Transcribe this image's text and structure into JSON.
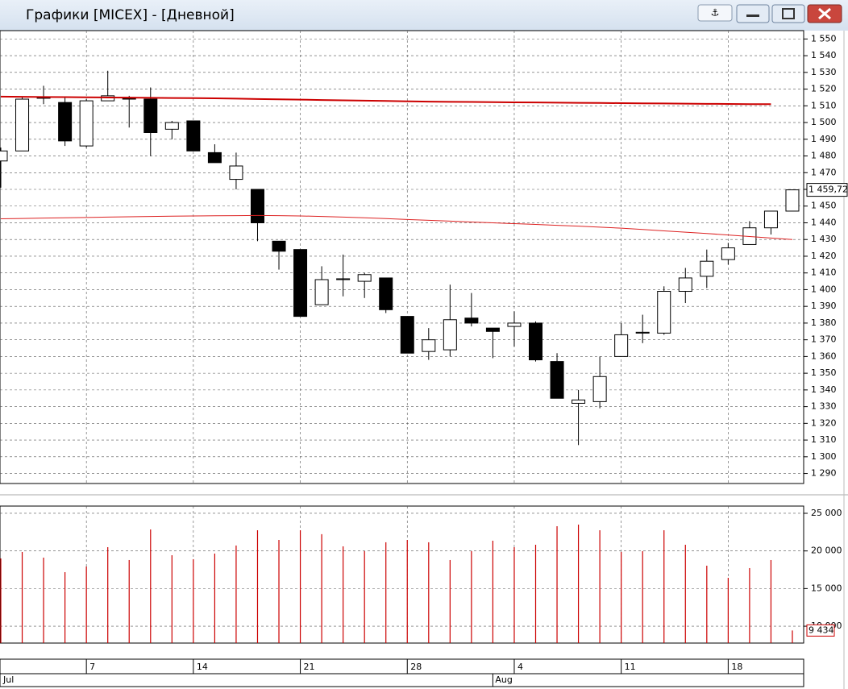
{
  "window": {
    "title": "Графики [MICEX] - [Дневной]"
  },
  "chart_data": [
    {
      "type": "candlestick",
      "categories": [
        null,
        null,
        null,
        null,
        "7",
        null,
        null,
        null,
        null,
        "14",
        null,
        null,
        null,
        null,
        "21",
        null,
        null,
        null,
        null,
        "28",
        null,
        null,
        null,
        null,
        "4",
        null,
        null,
        null,
        null,
        "11",
        null,
        null,
        null,
        null,
        "18",
        null,
        null,
        null
      ],
      "month_categories": [
        "Jul",
        null,
        null,
        null,
        null,
        null,
        null,
        null,
        null,
        null,
        null,
        null,
        null,
        null,
        null,
        null,
        null,
        null,
        null,
        null,
        null,
        null,
        null,
        "Aug",
        null,
        null,
        null,
        null,
        null,
        null,
        null,
        null,
        null,
        null,
        null,
        null,
        null,
        null
      ],
      "open": [
        1477,
        1483,
        1515,
        1512,
        1486,
        1513,
        1515,
        1514,
        1496,
        1501,
        1482,
        1466,
        1460,
        1429,
        1424,
        1391,
        1406,
        1405,
        1407,
        1384,
        1363,
        1364,
        1383,
        1377,
        1378,
        1380,
        1357,
        1332,
        1333,
        1360,
        1374,
        1374,
        1399,
        1408,
        1418,
        1427,
        1437,
        1447
      ],
      "high": [
        1485,
        1515,
        1522,
        1515,
        1514,
        1531,
        1516,
        1521,
        1501,
        1501,
        1487,
        1482,
        1460,
        1429,
        1424,
        1414,
        1421,
        1410,
        1407,
        1384,
        1377,
        1403,
        1398,
        1377,
        1387,
        1381,
        1362,
        1340,
        1360,
        1380,
        1385,
        1402,
        1413,
        1424,
        1428,
        1441,
        1447,
        1460
      ],
      "low": [
        1461,
        1483,
        1511,
        1486,
        1485,
        1513,
        1497,
        1480,
        1490,
        1483,
        1476,
        1460,
        1429,
        1412,
        1384,
        1391,
        1396,
        1395,
        1386,
        1362,
        1358,
        1360,
        1378,
        1359,
        1366,
        1357,
        1335,
        1307,
        1329,
        1360,
        1368,
        1373,
        1392,
        1401,
        1415,
        1427,
        1433,
        1447
      ],
      "close": [
        1483,
        1514,
        1515,
        1489,
        1513,
        1516,
        1514,
        1494,
        1500,
        1483,
        1476,
        1474,
        1440,
        1423,
        1384,
        1406,
        1406.5,
        1409,
        1388,
        1362,
        1370,
        1382,
        1380,
        1375,
        1380,
        1358,
        1335,
        1334,
        1348,
        1373,
        1374.5,
        1399,
        1407,
        1417,
        1425,
        1437,
        1447,
        1459.72
      ],
      "last_price": {
        "value": 1459.72,
        "label": "1 459,72"
      },
      "lines": [
        {
          "color": "#cc0000",
          "width": 2,
          "values": [
            1515.5,
            1515.4,
            1515.3,
            1515.2,
            1515.1,
            1515.0,
            1514.9,
            1514.8,
            1514.7,
            1514.6,
            1514.5,
            1514.3,
            1514.1,
            1513.9,
            1513.7,
            1513.5,
            1513.3,
            1513.1,
            1512.9,
            1512.7,
            1512.5,
            1512.4,
            1512.3,
            1512.2,
            1512.1,
            1512.0,
            1511.9,
            1511.8,
            1511.7,
            1511.6,
            1511.5,
            1511.4,
            1511.3,
            1511.2,
            1511.1,
            1511.0,
            1511.0,
            null
          ]
        },
        {
          "color": "#dd2222",
          "width": 1,
          "values": [
            1442.4,
            1442.6,
            1442.8,
            1443.0,
            1443.2,
            1443.4,
            1443.6,
            1443.8,
            1444.0,
            1444.1,
            1444.2,
            1444.3,
            1444.4,
            1444.3,
            1444.1,
            1443.8,
            1443.4,
            1443.0,
            1442.5,
            1442.0,
            1441.5,
            1441.0,
            1440.5,
            1440.0,
            1439.5,
            1439.0,
            1438.5,
            1438.0,
            1437.4,
            1436.8,
            1436.0,
            1435.2,
            1434.4,
            1433.6,
            1432.7,
            1431.8,
            1430.9,
            1430.0
          ]
        }
      ],
      "ylim": [
        1284,
        1555
      ],
      "yticks": [
        {
          "value": 1550,
          "label": "1 550"
        },
        {
          "value": 1540,
          "label": "1 540"
        },
        {
          "value": 1530,
          "label": "1 530"
        },
        {
          "value": 1520,
          "label": "1 520"
        },
        {
          "value": 1510,
          "label": "1 510"
        },
        {
          "value": 1500,
          "label": "1 500"
        },
        {
          "value": 1490,
          "label": "1 490"
        },
        {
          "value": 1480,
          "label": "1 480"
        },
        {
          "value": 1470,
          "label": "1 470"
        },
        {
          "value": 1460,
          "label": "1 460"
        },
        {
          "value": 1450,
          "label": "1 450"
        },
        {
          "value": 1440,
          "label": "1 440"
        },
        {
          "value": 1430,
          "label": "1 430"
        },
        {
          "value": 1420,
          "label": "1 420"
        },
        {
          "value": 1410,
          "label": "1 410"
        },
        {
          "value": 1400,
          "label": "1 400"
        },
        {
          "value": 1390,
          "label": "1 390"
        },
        {
          "value": 1380,
          "label": "1 380"
        },
        {
          "value": 1370,
          "label": "1 370"
        },
        {
          "value": 1360,
          "label": "1 360"
        },
        {
          "value": 1350,
          "label": "1 350"
        },
        {
          "value": 1340,
          "label": "1 340"
        },
        {
          "value": 1330,
          "label": "1 330"
        },
        {
          "value": 1320,
          "label": "1 320"
        },
        {
          "value": 1310,
          "label": "1 310"
        },
        {
          "value": 1300,
          "label": "1 300"
        },
        {
          "value": 1290,
          "label": "1 290"
        }
      ],
      "grid": true
    },
    {
      "type": "bar",
      "values": [
        19000,
        19860,
        19110,
        17180,
        17930,
        20500,
        18790,
        22860,
        19430,
        18900,
        19650,
        20720,
        22750,
        21470,
        22750,
        22220,
        20610,
        19970,
        21150,
        21470,
        21150,
        18790,
        19970,
        21360,
        20500,
        20820,
        23290,
        23500,
        22750,
        19860,
        19970,
        22750,
        20820,
        18040,
        16430,
        17720,
        18790,
        9434
      ],
      "last_value": {
        "value": 9434,
        "label": "9 434"
      },
      "color": "#cc0000",
      "ylim": [
        7760,
        25960
      ],
      "yticks": [
        {
          "value": 25000,
          "label": "25 000"
        },
        {
          "value": 20000,
          "label": "20 000"
        },
        {
          "value": 15000,
          "label": "15 000"
        },
        {
          "value": 10000,
          "label": "10 000"
        }
      ],
      "grid": true
    }
  ]
}
